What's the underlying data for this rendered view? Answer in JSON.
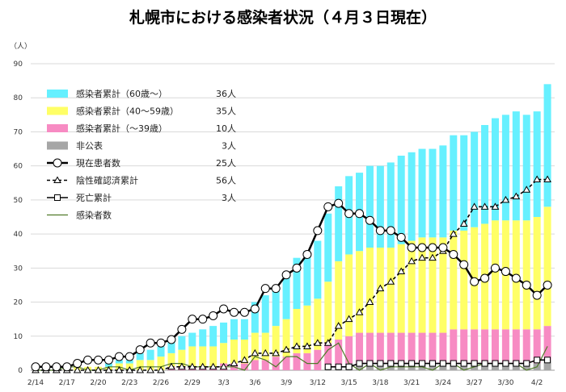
{
  "chart_data": {
    "type": "bar",
    "title": "札幌市における感染者状況（４月３日現在）",
    "ylabel": "（人）",
    "xlabel": "",
    "ylim": [
      0,
      90
    ],
    "yticks": [
      0,
      10,
      20,
      30,
      40,
      50,
      60,
      70,
      80,
      90
    ],
    "grid": true,
    "legend_position": "top-left",
    "x": [
      "2/14",
      "2/15",
      "2/16",
      "2/17",
      "2/18",
      "2/19",
      "2/20",
      "2/21",
      "2/22",
      "2/23",
      "2/24",
      "2/25",
      "2/26",
      "2/27",
      "2/28",
      "2/29",
      "3/1",
      "3/2",
      "3/3",
      "3/4",
      "3/5",
      "3/6",
      "3/7",
      "3/8",
      "3/9",
      "3/10",
      "3/11",
      "3/12",
      "3/13",
      "3/14",
      "3/15",
      "3/16",
      "3/17",
      "3/18",
      "3/19",
      "3/20",
      "3/21",
      "3/22",
      "3/23",
      "3/24",
      "3/25",
      "3/26",
      "3/27",
      "3/28",
      "3/29",
      "3/30",
      "3/31",
      "4/1",
      "4/2",
      "4/3"
    ],
    "xtick_labels": [
      "2/14",
      "2/17",
      "2/20",
      "2/23",
      "2/26",
      "2/29",
      "3/3",
      "3/6",
      "3/9",
      "3/12",
      "3/15",
      "3/18",
      "3/21",
      "3/24",
      "3/27",
      "3/30",
      "4/2"
    ],
    "stack_series": [
      {
        "name": "非公表",
        "color": "#a6a6a6",
        "values": [
          0,
          0,
          0,
          0,
          0,
          0,
          0,
          0,
          0,
          0,
          0,
          0,
          0,
          0,
          0,
          0,
          0,
          0,
          0,
          0,
          0,
          0,
          0,
          0,
          0,
          0,
          0,
          0,
          1,
          1,
          2,
          2,
          2,
          2,
          2,
          2,
          2,
          2,
          2,
          2,
          2,
          2,
          2,
          2,
          2,
          2,
          2,
          2,
          2,
          3
        ]
      },
      {
        "name": "感染者累計（～39歳）",
        "color": "#f78bc3",
        "values": [
          0,
          0,
          0,
          0,
          0,
          0,
          0,
          0,
          0,
          0,
          0,
          0,
          0,
          1,
          1,
          1,
          1,
          1,
          2,
          2,
          2,
          3,
          3,
          4,
          4,
          5,
          5,
          6,
          7,
          8,
          8,
          9,
          9,
          9,
          9,
          9,
          9,
          9,
          9,
          9,
          10,
          10,
          10,
          10,
          10,
          10,
          10,
          10,
          10,
          10
        ]
      },
      {
        "name": "感染者累計（40～59歳）",
        "color": "#ffff66",
        "values": [
          0,
          0,
          0,
          1,
          1,
          1,
          1,
          1,
          2,
          2,
          3,
          3,
          4,
          4,
          5,
          6,
          6,
          6,
          6,
          7,
          7,
          8,
          8,
          9,
          11,
          13,
          14,
          15,
          18,
          23,
          24,
          24,
          25,
          25,
          25,
          26,
          27,
          28,
          28,
          28,
          29,
          29,
          30,
          31,
          32,
          32,
          32,
          32,
          33,
          35
        ]
      },
      {
        "name": "感染者累計（60歳～）",
        "color": "#66f0ff",
        "values": [
          0,
          0,
          0,
          0,
          0,
          0,
          0,
          1,
          1,
          1,
          2,
          3,
          3,
          4,
          4,
          4,
          5,
          6,
          6,
          6,
          6,
          9,
          11,
          11,
          13,
          15,
          16,
          17,
          20,
          22,
          23,
          23,
          24,
          24,
          25,
          26,
          26,
          26,
          26,
          27,
          28,
          28,
          28,
          29,
          30,
          31,
          32,
          31,
          31,
          36
        ]
      }
    ],
    "line_series": [
      {
        "name": "現在患者数",
        "marker": "circle",
        "style": "solid",
        "values": [
          1,
          1,
          1,
          1,
          2,
          3,
          3,
          3,
          4,
          4,
          6,
          8,
          8,
          9,
          12,
          15,
          15,
          16,
          18,
          17,
          17,
          18,
          24,
          24,
          28,
          30,
          34,
          41,
          48,
          49,
          46,
          46,
          44,
          41,
          41,
          39,
          36,
          36,
          36,
          36,
          34,
          31,
          26,
          27,
          30,
          29,
          27,
          25,
          22,
          25
        ]
      },
      {
        "name": "陰性確認済累計",
        "marker": "triangle",
        "style": "dashed",
        "values": [
          0,
          0,
          0,
          0,
          0,
          0,
          0,
          0,
          0,
          0,
          0,
          0,
          0,
          1,
          1,
          1,
          1,
          1,
          1,
          2,
          3,
          5,
          5,
          5,
          6,
          7,
          7,
          8,
          8,
          13,
          15,
          17,
          20,
          24,
          26,
          29,
          32,
          33,
          33,
          35,
          40,
          43,
          48,
          48,
          48,
          50,
          51,
          53,
          56,
          56
        ]
      },
      {
        "name": "死亡累計",
        "marker": "square",
        "style": "solid",
        "values": [
          null,
          null,
          null,
          null,
          null,
          null,
          null,
          null,
          null,
          null,
          null,
          null,
          null,
          null,
          null,
          null,
          null,
          null,
          null,
          null,
          null,
          null,
          null,
          null,
          null,
          null,
          null,
          null,
          1,
          1,
          1,
          2,
          2,
          2,
          2,
          2,
          2,
          2,
          2,
          2,
          2,
          2,
          2,
          2,
          2,
          2,
          2,
          2,
          3,
          3
        ]
      },
      {
        "name": "感染者数",
        "marker": "none",
        "style": "thin",
        "values": [
          0,
          0,
          0,
          1,
          1,
          0,
          0,
          1,
          1,
          0,
          1,
          1,
          1,
          2,
          2,
          1,
          1,
          1,
          1,
          1,
          0,
          4,
          3,
          1,
          4,
          4,
          2,
          2,
          6,
          8,
          2,
          0,
          2,
          0,
          1,
          1,
          1,
          1,
          0,
          2,
          2,
          0,
          1,
          2,
          2,
          2,
          2,
          0,
          1,
          7
        ]
      }
    ],
    "legend": [
      {
        "label": "感染者累計（60歳～）",
        "value": "36人",
        "kind": "bar",
        "color": "#66f0ff"
      },
      {
        "label": "感染者累計（40～59歳）",
        "value": "35人",
        "kind": "bar",
        "color": "#ffff66"
      },
      {
        "label": "感染者累計（～39歳）",
        "value": "10人",
        "kind": "bar",
        "color": "#f78bc3"
      },
      {
        "label": "非公表",
        "value": "3人",
        "kind": "bar",
        "color": "#a6a6a6"
      },
      {
        "label": "現在患者数",
        "value": "25人",
        "kind": "line-circle",
        "color": "#000000"
      },
      {
        "label": "陰性確認済累計",
        "value": "56人",
        "kind": "line-triangle",
        "color": "#000000"
      },
      {
        "label": "死亡累計",
        "value": "3人",
        "kind": "line-square",
        "color": "#000000"
      },
      {
        "label": "感染者数",
        "value": "",
        "kind": "line-thin",
        "color": "#4f7a28"
      }
    ]
  }
}
